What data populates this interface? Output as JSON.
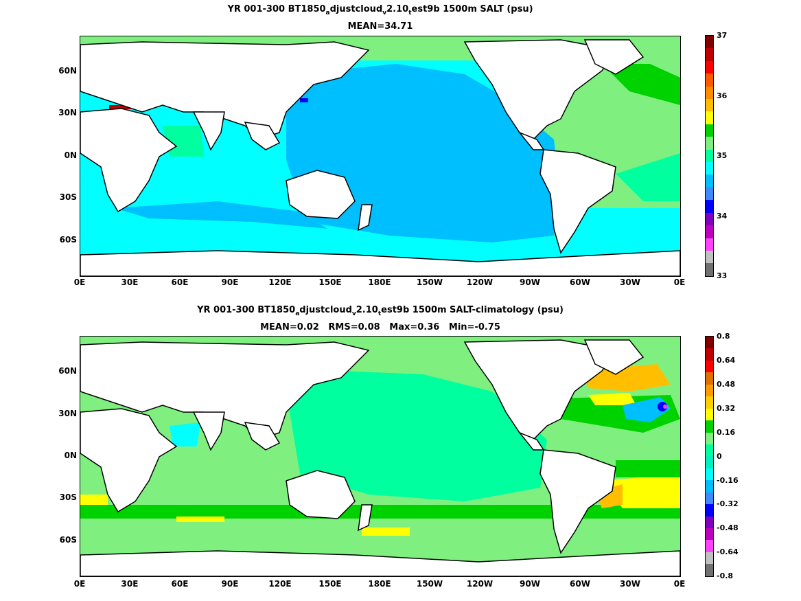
{
  "top_panel": {
    "title_line1_pre": "YR 001-300 BT1850",
    "title_sub_a": "a",
    "title_mid1": "djustcloud",
    "title_sub_v": "v",
    "title_mid2": "2.10",
    "title_sub_t": "t",
    "title_post": "est9b 1500m SALT (psu)",
    "title_line2": "MEAN=34.71",
    "colorbar": {
      "labels": [
        "37",
        "36",
        "35",
        "34",
        "33"
      ],
      "colors": [
        "#7f0000",
        "#bf0000",
        "#ff0000",
        "#ff5a00",
        "#ff8c00",
        "#ffbf00",
        "#ffff00",
        "#00d200",
        "#7ff07f",
        "#00ff9f",
        "#00ffff",
        "#00bfff",
        "#3c8cff",
        "#0000ff",
        "#7f00bf",
        "#bf00bf",
        "#ff40ff",
        "#c0c0c0",
        "#707070"
      ]
    }
  },
  "bottom_panel": {
    "title_line1_pre": "YR 001-300 BT1850",
    "title_sub_a": "a",
    "title_mid1": "djustcloud",
    "title_sub_v": "v",
    "title_mid2": "2.10",
    "title_sub_t": "t",
    "title_post": "est9b 1500m SALT-climatology (psu)",
    "title_line2": "MEAN=0.02   RMS=0.08   Max=0.36   Min=-0.75",
    "colorbar": {
      "labels": [
        "0.8",
        "0.64",
        "0.48",
        "0.32",
        "0.16",
        "0",
        "-0.16",
        "-0.32",
        "-0.48",
        "-0.64",
        "-0.8"
      ],
      "colors": [
        "#7f0000",
        "#bf0000",
        "#ff0000",
        "#e07000",
        "#ff9a00",
        "#ffd000",
        "#ffff00",
        "#00d200",
        "#7ff07f",
        "#00ff9f",
        "#00f0c0",
        "#00ffff",
        "#00bfff",
        "#3c8cff",
        "#0000ff",
        "#7f00bf",
        "#bf00bf",
        "#ff40ff",
        "#c0c0c0",
        "#707070"
      ]
    }
  },
  "lat_ticks": [
    "60N",
    "30N",
    "0N",
    "30S",
    "60S"
  ],
  "lon_ticks": [
    "0E",
    "30E",
    "60E",
    "90E",
    "120E",
    "150E",
    "180E",
    "150W",
    "120W",
    "90W",
    "60W",
    "30W",
    "0E"
  ]
}
